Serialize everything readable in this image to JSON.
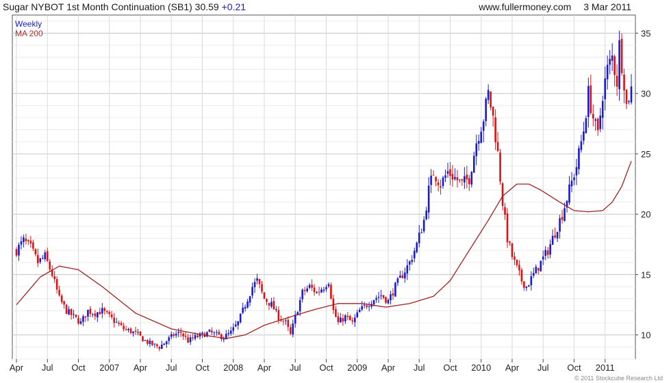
{
  "header": {
    "title": "Sugar NYBOT 1st Month Continuation (SB1)",
    "last": "30.59",
    "change": "+0.21",
    "website": "www.fullermoney.com",
    "date": "3 Mar 2011"
  },
  "legend": {
    "series1": "Weekly",
    "series2": "MA 200"
  },
  "copyright": "© 2011 Stockcube Research Ltd",
  "colors": {
    "up": "#1a1acc",
    "down": "#dd1111",
    "ma": "#a02020",
    "grid": "#d9d9d9",
    "axis": "#444444"
  },
  "chart_data": {
    "type": "candlestick",
    "title": "Sugar NYBOT 1st Month Continuation (SB1)",
    "grid": true,
    "legend_position": "top-left",
    "y_axis_position": "right",
    "ylim": [
      8,
      36.5
    ],
    "yticks": [
      10,
      15,
      20,
      25,
      30,
      35
    ],
    "x_range_weeks": [
      0,
      258
    ],
    "xticks": [
      {
        "label": "Apr",
        "week": 0
      },
      {
        "label": "Jul",
        "week": 13
      },
      {
        "label": "Oct",
        "week": 26
      },
      {
        "label": "2007",
        "week": 39
      },
      {
        "label": "Apr",
        "week": 52
      },
      {
        "label": "Jul",
        "week": 65
      },
      {
        "label": "Oct",
        "week": 78
      },
      {
        "label": "2008",
        "week": 91
      },
      {
        "label": "Apr",
        "week": 104
      },
      {
        "label": "Jul",
        "week": 117
      },
      {
        "label": "Oct",
        "week": 130
      },
      {
        "label": "2009",
        "week": 143
      },
      {
        "label": "Apr",
        "week": 156
      },
      {
        "label": "Jul",
        "week": 169
      },
      {
        "label": "Oct",
        "week": 182
      },
      {
        "label": "2010",
        "week": 195
      },
      {
        "label": "Apr",
        "week": 208
      },
      {
        "label": "Jul",
        "week": 221
      },
      {
        "label": "Oct",
        "week": 234
      },
      {
        "label": "2011",
        "week": 247
      }
    ],
    "close_anchors": [
      [
        0,
        17.0
      ],
      [
        3,
        17.8
      ],
      [
        6,
        17.2
      ],
      [
        9,
        16.0
      ],
      [
        12,
        16.5
      ],
      [
        15,
        15.0
      ],
      [
        18,
        13.0
      ],
      [
        21,
        12.0
      ],
      [
        24,
        11.5
      ],
      [
        27,
        11.0
      ],
      [
        30,
        12.0
      ],
      [
        33,
        11.8
      ],
      [
        36,
        12.0
      ],
      [
        39,
        11.5
      ],
      [
        42,
        11.0
      ],
      [
        45,
        10.5
      ],
      [
        48,
        10.3
      ],
      [
        51,
        10.0
      ],
      [
        54,
        9.5
      ],
      [
        57,
        9.2
      ],
      [
        60,
        9.0
      ],
      [
        63,
        9.5
      ],
      [
        66,
        10.0
      ],
      [
        69,
        10.2
      ],
      [
        72,
        9.5
      ],
      [
        75,
        9.8
      ],
      [
        78,
        10.0
      ],
      [
        81,
        10.2
      ],
      [
        84,
        10.0
      ],
      [
        87,
        9.8
      ],
      [
        90,
        10.2
      ],
      [
        93,
        11.0
      ],
      [
        96,
        12.5
      ],
      [
        99,
        14.0
      ],
      [
        101,
        14.5
      ],
      [
        104,
        13.0
      ],
      [
        107,
        12.5
      ],
      [
        110,
        11.5
      ],
      [
        113,
        11.0
      ],
      [
        115,
        10.0
      ],
      [
        117,
        11.5
      ],
      [
        120,
        13.5
      ],
      [
        123,
        14.0
      ],
      [
        126,
        13.5
      ],
      [
        129,
        14.0
      ],
      [
        131,
        14.5
      ],
      [
        133,
        12.0
      ],
      [
        135,
        11.0
      ],
      [
        138,
        11.5
      ],
      [
        141,
        11.0
      ],
      [
        144,
        12.0
      ],
      [
        147,
        12.5
      ],
      [
        150,
        13.0
      ],
      [
        153,
        13.3
      ],
      [
        156,
        12.8
      ],
      [
        159,
        14.0
      ],
      [
        162,
        15.0
      ],
      [
        165,
        16.0
      ],
      [
        168,
        17.5
      ],
      [
        171,
        19.5
      ],
      [
        173,
        22.0
      ],
      [
        175,
        23.5
      ],
      [
        178,
        22.5
      ],
      [
        181,
        23.5
      ],
      [
        184,
        23.0
      ],
      [
        187,
        22.5
      ],
      [
        190,
        23.0
      ],
      [
        193,
        26.0
      ],
      [
        196,
        28.0
      ],
      [
        198,
        30.0
      ],
      [
        200,
        28.0
      ],
      [
        202,
        25.0
      ],
      [
        204,
        21.0
      ],
      [
        206,
        18.0
      ],
      [
        208,
        16.5
      ],
      [
        210,
        15.5
      ],
      [
        212,
        14.5
      ],
      [
        214,
        14.0
      ],
      [
        217,
        15.0
      ],
      [
        220,
        16.0
      ],
      [
        223,
        17.0
      ],
      [
        226,
        18.5
      ],
      [
        229,
        20.0
      ],
      [
        232,
        22.0
      ],
      [
        235,
        24.0
      ],
      [
        238,
        27.0
      ],
      [
        240,
        30.0
      ],
      [
        242,
        28.0
      ],
      [
        244,
        26.5
      ],
      [
        246,
        30.0
      ],
      [
        248,
        32.0
      ],
      [
        250,
        33.0
      ],
      [
        252,
        31.0
      ],
      [
        253,
        34.0
      ],
      [
        255,
        31.0
      ],
      [
        256,
        29.0
      ],
      [
        258,
        30.59
      ]
    ],
    "ma200_anchors": [
      [
        0,
        12.5
      ],
      [
        10,
        14.8
      ],
      [
        18,
        15.7
      ],
      [
        26,
        15.4
      ],
      [
        36,
        14.0
      ],
      [
        50,
        11.8
      ],
      [
        65,
        10.5
      ],
      [
        78,
        10.0
      ],
      [
        88,
        9.7
      ],
      [
        96,
        10.0
      ],
      [
        104,
        10.8
      ],
      [
        115,
        11.5
      ],
      [
        125,
        12.1
      ],
      [
        135,
        12.6
      ],
      [
        145,
        12.6
      ],
      [
        155,
        12.3
      ],
      [
        165,
        12.6
      ],
      [
        175,
        13.2
      ],
      [
        182,
        14.5
      ],
      [
        190,
        17.0
      ],
      [
        198,
        19.5
      ],
      [
        204,
        21.5
      ],
      [
        210,
        22.5
      ],
      [
        215,
        22.5
      ],
      [
        220,
        22.0
      ],
      [
        228,
        21.0
      ],
      [
        234,
        20.3
      ],
      [
        240,
        20.2
      ],
      [
        246,
        20.3
      ],
      [
        250,
        21.0
      ],
      [
        254,
        22.3
      ],
      [
        258,
        24.4
      ]
    ]
  }
}
